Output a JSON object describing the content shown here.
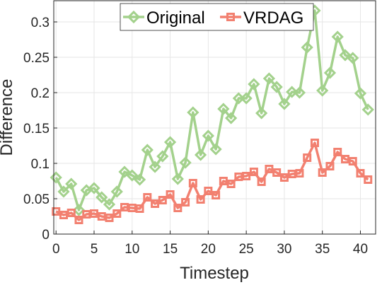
{
  "chart_data": {
    "type": "line",
    "xlabel": "Timestep",
    "ylabel": "Difference",
    "xlim": [
      -0.3,
      42
    ],
    "ylim": [
      0,
      0.33
    ],
    "xticks": [
      0,
      5,
      10,
      15,
      20,
      25,
      30,
      35,
      40
    ],
    "yticks": [
      0,
      0.05,
      0.1,
      0.15,
      0.2,
      0.25,
      0.3
    ],
    "xtick_labels": [
      "0",
      "5",
      "10",
      "15",
      "20",
      "25",
      "30",
      "35",
      "40"
    ],
    "ytick_labels": [
      "0",
      "0.05",
      "0.1",
      "0.15",
      "0.2",
      "0.25",
      "0.3"
    ],
    "grid": true,
    "legend_position": "top-center",
    "x": [
      0,
      1,
      2,
      3,
      4,
      5,
      6,
      7,
      8,
      9,
      10,
      11,
      12,
      13,
      14,
      15,
      16,
      17,
      18,
      19,
      20,
      21,
      22,
      23,
      24,
      25,
      26,
      27,
      28,
      29,
      30,
      31,
      32,
      33,
      34,
      35,
      36,
      37,
      38,
      39,
      40,
      41
    ],
    "series": [
      {
        "name": "Original",
        "color": "#a3d18c",
        "marker": "diamond",
        "values": [
          0.08,
          0.06,
          0.071,
          0.034,
          0.062,
          0.065,
          0.052,
          0.042,
          0.06,
          0.088,
          0.083,
          0.077,
          0.119,
          0.095,
          0.11,
          0.13,
          0.078,
          0.101,
          0.172,
          0.112,
          0.139,
          0.12,
          0.177,
          0.164,
          0.192,
          0.192,
          0.212,
          0.171,
          0.22,
          0.208,
          0.184,
          0.201,
          0.2,
          0.264,
          0.316,
          0.203,
          0.228,
          0.279,
          0.253,
          0.249,
          0.199,
          0.176
        ]
      },
      {
        "name": "VRDAG",
        "color": "#f28070",
        "marker": "square",
        "values": [
          0.032,
          0.027,
          0.03,
          0.02,
          0.028,
          0.029,
          0.025,
          0.023,
          0.029,
          0.038,
          0.037,
          0.036,
          0.052,
          0.043,
          0.048,
          0.056,
          0.037,
          0.045,
          0.072,
          0.049,
          0.061,
          0.055,
          0.075,
          0.071,
          0.081,
          0.082,
          0.088,
          0.074,
          0.092,
          0.087,
          0.08,
          0.085,
          0.086,
          0.108,
          0.129,
          0.087,
          0.096,
          0.116,
          0.106,
          0.103,
          0.086,
          0.077
        ]
      }
    ]
  }
}
